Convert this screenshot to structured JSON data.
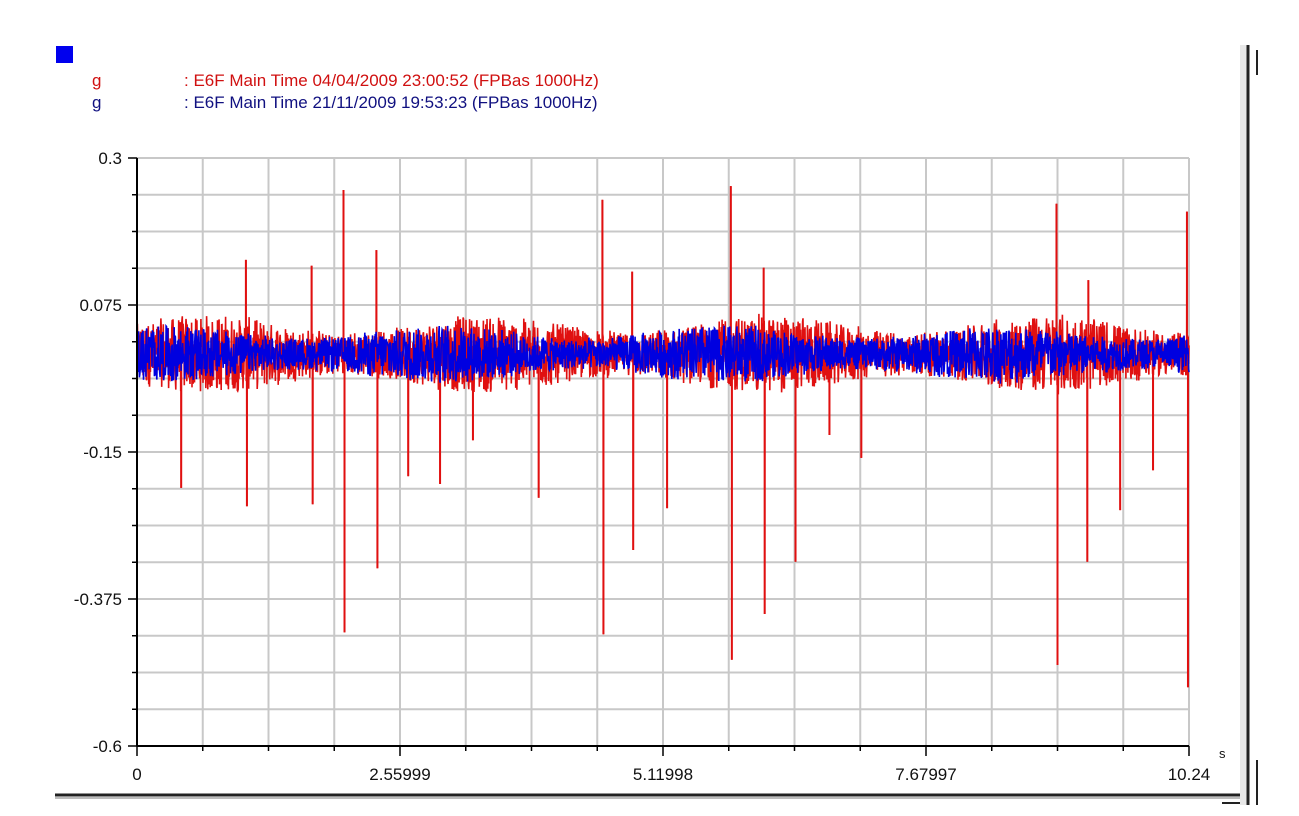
{
  "legend": {
    "swatch_color": "#0000ee",
    "entries": [
      {
        "symbol": "g",
        "label": ": E6F Main Time 04/04/2009 23:00:52 (FPBas 1000Hz)",
        "color": "#e01010"
      },
      {
        "symbol": "g",
        "label": ": E6F Main Time 21/11/2009 19:53:23 (FPBas 1000Hz)",
        "color": "#0000e0"
      }
    ]
  },
  "chart_data": {
    "type": "line",
    "xlabel": "s",
    "ylabel": "",
    "xlim": [
      0,
      10.24
    ],
    "ylim": [
      -0.6,
      0.3
    ],
    "x_ticks": [
      "0",
      "2.55999",
      "5.11998",
      "7.67997",
      "10.24"
    ],
    "y_ticks": [
      "0.3",
      "0.075",
      "-0.15",
      "-0.375",
      "-0.6"
    ],
    "grid": true,
    "sample_rate_hz": 1000,
    "series": [
      {
        "name": "E6F Main Time 04/04/2009 23:00:52 (FPBas 1000Hz)",
        "color": "#e01010",
        "baseline": 0.0,
        "noise_amplitude": 0.055,
        "peaks": [
          {
            "t": 1.06,
            "v": 0.144
          },
          {
            "t": 1.7,
            "v": 0.135
          },
          {
            "t": 2.01,
            "v": 0.251
          },
          {
            "t": 2.33,
            "v": 0.159
          },
          {
            "t": 4.53,
            "v": 0.236
          },
          {
            "t": 4.82,
            "v": 0.126
          },
          {
            "t": 5.78,
            "v": 0.257
          },
          {
            "t": 6.1,
            "v": 0.132
          },
          {
            "t": 8.95,
            "v": 0.23
          },
          {
            "t": 9.26,
            "v": 0.113
          },
          {
            "t": 10.22,
            "v": 0.218
          },
          {
            "t": 0.43,
            "v": -0.205
          },
          {
            "t": 1.07,
            "v": -0.233
          },
          {
            "t": 1.71,
            "v": -0.23
          },
          {
            "t": 2.02,
            "v": -0.426
          },
          {
            "t": 2.34,
            "v": -0.328
          },
          {
            "t": 2.64,
            "v": -0.187
          },
          {
            "t": 2.95,
            "v": -0.199
          },
          {
            "t": 3.27,
            "v": -0.132
          },
          {
            "t": 3.91,
            "v": -0.22
          },
          {
            "t": 4.54,
            "v": -0.429
          },
          {
            "t": 4.83,
            "v": -0.3
          },
          {
            "t": 5.16,
            "v": -0.236
          },
          {
            "t": 5.79,
            "v": -0.468
          },
          {
            "t": 6.11,
            "v": -0.398
          },
          {
            "t": 6.41,
            "v": -0.318
          },
          {
            "t": 6.74,
            "v": -0.124
          },
          {
            "t": 7.05,
            "v": -0.159
          },
          {
            "t": 8.96,
            "v": -0.476
          },
          {
            "t": 9.25,
            "v": -0.318
          },
          {
            "t": 9.57,
            "v": -0.239
          },
          {
            "t": 9.89,
            "v": -0.178
          },
          {
            "t": 10.23,
            "v": -0.51
          }
        ]
      },
      {
        "name": "E6F Main Time 21/11/2009 19:53:23 (FPBas 1000Hz)",
        "color": "#0000e0",
        "baseline": 0.0,
        "noise_amplitude": 0.04,
        "peaks": []
      }
    ]
  }
}
